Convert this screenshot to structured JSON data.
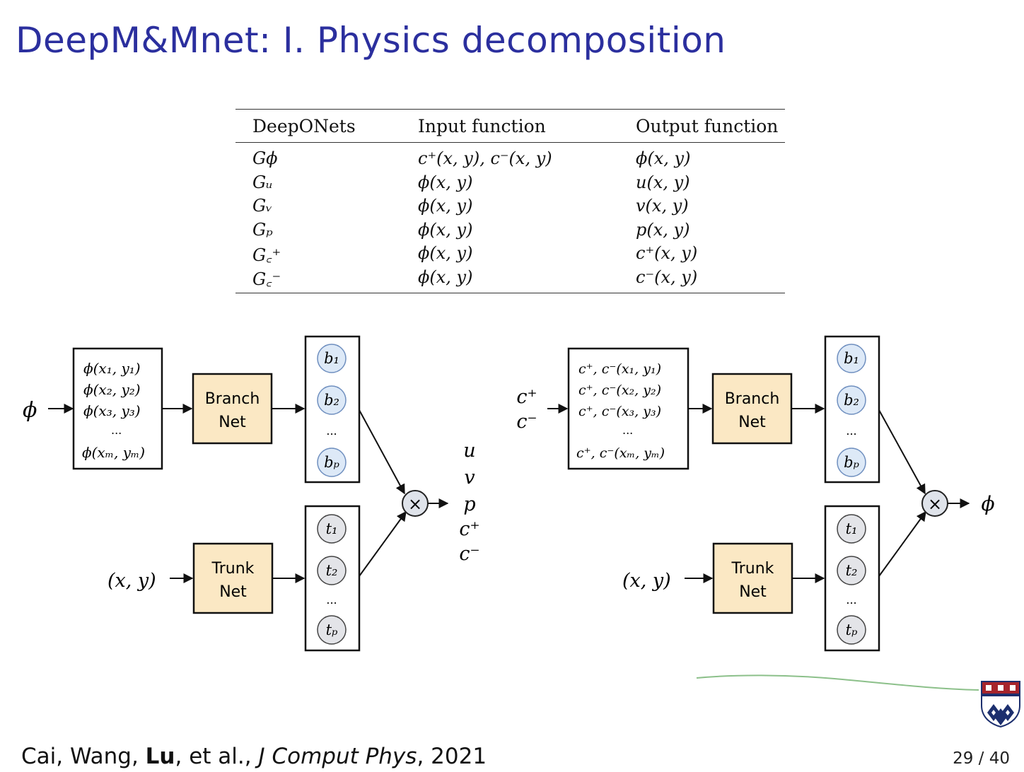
{
  "slide": {
    "title": "DeepM&Mnet: I. Physics decomposition",
    "page": "29 / 40"
  },
  "table": {
    "headers": [
      "DeepONets",
      "Input function",
      "Output function"
    ],
    "rows": [
      [
        "Gϕ",
        "c⁺(x, y), c⁻(x, y)",
        "ϕ(x, y)"
      ],
      [
        "Gᵤ",
        "ϕ(x, y)",
        "u(x, y)"
      ],
      [
        "Gᵥ",
        "ϕ(x, y)",
        "v(x, y)"
      ],
      [
        "Gₚ",
        "ϕ(x, y)",
        "p(x, y)"
      ],
      [
        "G꜀⁺",
        "ϕ(x, y)",
        "c⁺(x, y)"
      ],
      [
        "G꜀⁻",
        "ϕ(x, y)",
        "c⁻(x, y)"
      ]
    ]
  },
  "left_diagram": {
    "input_symbol": "ϕ",
    "sensor_lines": [
      "ϕ(x₁, y₁)",
      "ϕ(x₂, y₂)",
      "ϕ(x₃, y₃)",
      "...",
      "ϕ(xₘ, yₘ)"
    ],
    "branch_line1": "Branch",
    "branch_line2": "Net",
    "trunk_line1": "Trunk",
    "trunk_line2": "Net",
    "trunk_input": "(x, y)",
    "b_nodes": [
      "b₁",
      "b₂",
      "...",
      "bₚ"
    ],
    "t_nodes": [
      "t₁",
      "t₂",
      "...",
      "tₚ"
    ],
    "product_symbol": "×",
    "outputs": [
      "u",
      "v",
      "p",
      "c⁺",
      "c⁻"
    ]
  },
  "right_diagram": {
    "input_line1": "c⁺",
    "input_line2": "c⁻",
    "sensor_lines": [
      "c⁺, c⁻(x₁, y₁)",
      "c⁺, c⁻(x₂, y₂)",
      "c⁺, c⁻(x₃, y₃)",
      "...",
      "c⁺, c⁻(xₘ, yₘ)"
    ],
    "branch_line1": "Branch",
    "branch_line2": "Net",
    "trunk_line1": "Trunk",
    "trunk_line2": "Net",
    "trunk_input": "(x, y)",
    "b_nodes": [
      "b₁",
      "b₂",
      "...",
      "bₚ"
    ],
    "t_nodes": [
      "t₁",
      "t₂",
      "...",
      "tₚ"
    ],
    "product_symbol": "×",
    "output": "ϕ"
  },
  "footer": {
    "authors_pre": "Cai, Wang, ",
    "authors_bold": "Lu",
    "authors_post": ", et al., ",
    "journal": "J Comput Phys",
    "year_sep": ", 2021"
  },
  "colors": {
    "title": "#2b2f9e",
    "net_box_fill": "#fbe8c4",
    "b_node_fill": "#dde9f7",
    "t_node_fill": "#e3e4e8",
    "product_fill": "#dfe3ea",
    "annotation_line": "#8cc08a",
    "logo_red": "#a6252c",
    "logo_blue": "#1c2f6e"
  }
}
